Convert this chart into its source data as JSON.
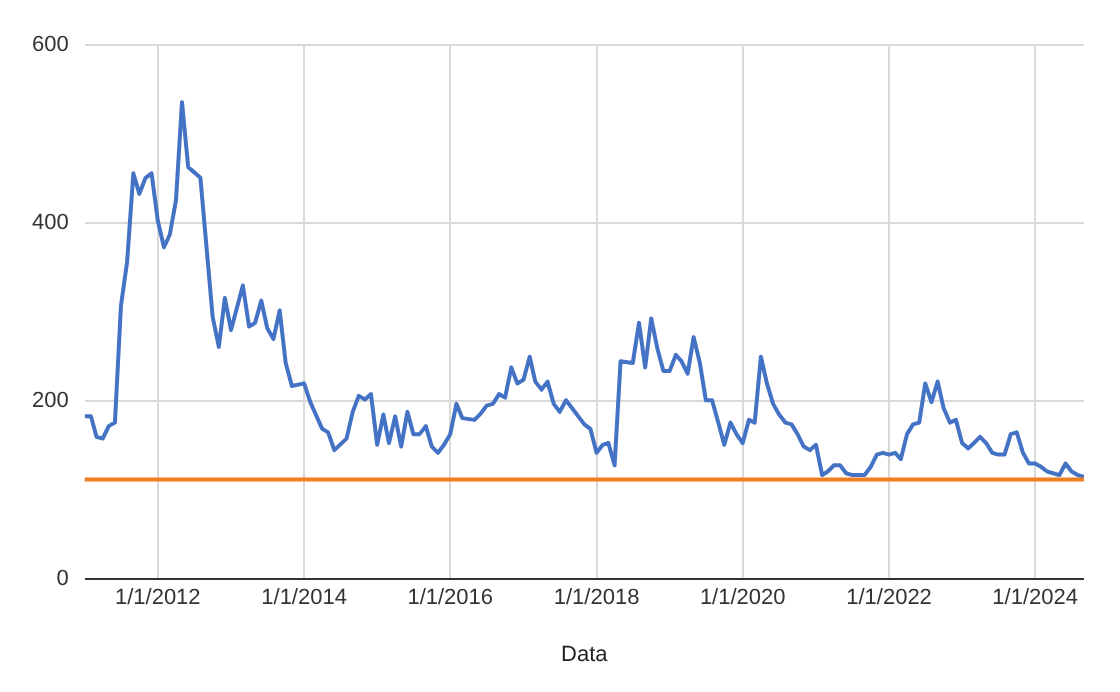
{
  "chart_data": {
    "type": "line",
    "xlabel": "Data",
    "x": [
      "2011-01",
      "2011-02",
      "2011-03",
      "2011-04",
      "2011-05",
      "2011-06",
      "2011-07",
      "2011-08",
      "2011-09",
      "2011-10",
      "2011-11",
      "2011-12",
      "2012-01",
      "2012-02",
      "2012-03",
      "2012-04",
      "2012-05",
      "2012-06",
      "2012-08",
      "2012-10",
      "2012-11",
      "2012-12",
      "2013-01",
      "2013-03",
      "2013-04",
      "2013-05",
      "2013-06",
      "2013-07",
      "2013-08",
      "2013-09",
      "2013-10",
      "2013-11",
      "2014-01",
      "2014-02",
      "2014-04",
      "2014-05",
      "2014-06",
      "2014-08",
      "2014-09",
      "2014-10",
      "2014-11",
      "2014-12",
      "2015-01",
      "2015-02",
      "2015-03",
      "2015-04",
      "2015-05",
      "2015-06",
      "2015-07",
      "2015-08",
      "2015-09",
      "2015-10",
      "2015-11",
      "2015-12",
      "2016-01",
      "2016-02",
      "2016-03",
      "2016-05",
      "2016-06",
      "2016-07",
      "2016-08",
      "2016-09",
      "2016-10",
      "2016-11",
      "2016-12",
      "2017-01",
      "2017-02",
      "2017-03",
      "2017-04",
      "2017-05",
      "2017-06",
      "2017-07",
      "2017-08",
      "2017-09",
      "2017-11",
      "2017-12",
      "2018-01",
      "2018-02",
      "2018-03",
      "2018-04",
      "2018-05",
      "2018-07",
      "2018-08",
      "2018-09",
      "2018-10",
      "2018-11",
      "2018-12",
      "2019-01",
      "2019-02",
      "2019-03",
      "2019-04",
      "2019-05",
      "2019-06",
      "2019-07",
      "2019-08",
      "2019-09",
      "2019-10",
      "2019-11",
      "2019-12",
      "2020-01",
      "2020-02",
      "2020-03",
      "2020-04",
      "2020-05",
      "2020-06",
      "2020-07",
      "2020-08",
      "2020-09",
      "2020-10",
      "2020-11",
      "2020-12",
      "2021-01",
      "2021-02",
      "2021-03",
      "2021-04",
      "2021-05",
      "2021-06",
      "2021-07",
      "2021-09",
      "2021-10",
      "2021-11",
      "2021-12",
      "2022-01",
      "2022-02",
      "2022-03",
      "2022-04",
      "2022-05",
      "2022-06",
      "2022-07",
      "2022-08",
      "2022-09",
      "2022-10",
      "2022-11",
      "2022-12",
      "2023-01",
      "2023-02",
      "2023-03",
      "2023-04",
      "2023-05",
      "2023-06",
      "2023-07",
      "2023-08",
      "2023-09",
      "2023-10",
      "2023-11",
      "2023-12",
      "2024-01",
      "2024-02",
      "2024-03",
      "2024-05",
      "2024-06",
      "2024-07",
      "2024-08",
      "2024-09"
    ],
    "series": [
      {
        "color": "#4472c4",
        "values": [
          183,
          183,
          160,
          158,
          172,
          176,
          307,
          357,
          456,
          433,
          451,
          456,
          403,
          373,
          387,
          426,
          536,
          463,
          451,
          295,
          261,
          316,
          280,
          330,
          284,
          288,
          313,
          282,
          270,
          302,
          243,
          217,
          220,
          199,
          169,
          165,
          145,
          158,
          188,
          206,
          202,
          208,
          151,
          185,
          153,
          183,
          149,
          188,
          163,
          163,
          172,
          149,
          142,
          151,
          163,
          197,
          181,
          179,
          186,
          195,
          197,
          208,
          204,
          238,
          220,
          224,
          250,
          222,
          213,
          222,
          197,
          188,
          201,
          192,
          174,
          169,
          142,
          151,
          153,
          128,
          245,
          243,
          288,
          238,
          293,
          259,
          234,
          234,
          252,
          245,
          231,
          272,
          243,
          201,
          201,
          176,
          151,
          176,
          163,
          153,
          179,
          176,
          250,
          220,
          197,
          185,
          176,
          174,
          163,
          149,
          145,
          151,
          117,
          121,
          128,
          128,
          119,
          117,
          117,
          126,
          140,
          142,
          140,
          142,
          135,
          163,
          174,
          176,
          220,
          199,
          222,
          192,
          176,
          179,
          153,
          147,
          153,
          160,
          153,
          142,
          140,
          140,
          163,
          165,
          142,
          130,
          130,
          126,
          121,
          117,
          130,
          121,
          117,
          115
        ]
      }
    ],
    "ref_lines": [
      {
        "axis": "y",
        "value": 112,
        "color": "#ef7d22"
      }
    ],
    "xlim": [
      "2011-01",
      "2024-09"
    ],
    "xticks": [
      {
        "value": "2012-01-01",
        "label": "1/1/2012"
      },
      {
        "value": "2014-01-01",
        "label": "1/1/2014"
      },
      {
        "value": "2016-01-01",
        "label": "1/1/2016"
      },
      {
        "value": "2018-01-01",
        "label": "1/1/2018"
      },
      {
        "value": "2020-01-01",
        "label": "1/1/2020"
      },
      {
        "value": "2022-01-01",
        "label": "1/1/2022"
      },
      {
        "value": "2024-01-01",
        "label": "1/1/2024"
      }
    ],
    "ylim": [
      0,
      600
    ],
    "yticks": [
      0,
      200,
      400,
      600
    ],
    "grid": true,
    "legend": false,
    "line_style": "solid",
    "marker": "none"
  }
}
